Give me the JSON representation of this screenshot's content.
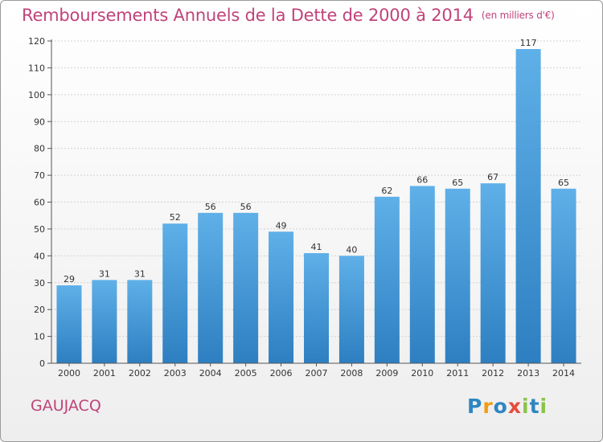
{
  "title": "Remboursements Annuels de la Dette de 2000 à 2014",
  "unit": "(en milliers d'€)",
  "commune": "GAUJACQ",
  "logo": {
    "letters": [
      "P",
      "r",
      "o",
      "x",
      "i",
      "t",
      "i"
    ],
    "colors": [
      "#2e86c1",
      "#f39c12",
      "#2e86c1",
      "#e74c3c",
      "#8bc34a",
      "#2e86c1",
      "#8bc34a"
    ]
  },
  "colors": {
    "bar_top": "#5fb0e8",
    "bar_bottom": "#2d7fc1",
    "accent": "#c0437a"
  },
  "chart_data": {
    "type": "bar",
    "categories": [
      "2000",
      "2001",
      "2002",
      "2003",
      "2004",
      "2005",
      "2006",
      "2007",
      "2008",
      "2009",
      "2010",
      "2011",
      "2012",
      "2013",
      "2014"
    ],
    "values": [
      29,
      31,
      31,
      52,
      56,
      56,
      49,
      41,
      40,
      62,
      66,
      65,
      67,
      117,
      65
    ],
    "ylim": [
      0,
      120
    ],
    "yticks": [
      0,
      10,
      20,
      30,
      40,
      50,
      60,
      70,
      80,
      90,
      100,
      110,
      120
    ],
    "grid": true,
    "data_labels": true
  }
}
